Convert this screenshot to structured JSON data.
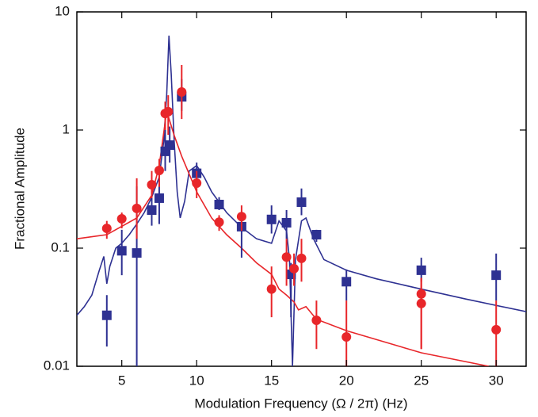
{
  "chart_data": {
    "type": "scatter",
    "xlabel": "Modulation Frequency (Ω / 2π) (Hz)",
    "ylabel": "Fractional Amplitude",
    "xlim": [
      2,
      32
    ],
    "xticks": [
      5,
      10,
      15,
      20,
      25,
      30
    ],
    "ylim": [
      0.01,
      10
    ],
    "yticks": [
      0.01,
      0.1,
      1,
      10
    ],
    "log_y": true,
    "grid": false,
    "series": [
      {
        "color": "#2e3192",
        "marker": "square",
        "x": [
          4,
          5,
          6,
          7,
          7.5,
          7.9,
          8.2,
          9,
          10,
          11.5,
          13,
          15,
          16,
          16.3,
          17,
          18,
          20,
          25,
          30
        ],
        "values": [
          0.027,
          0.095,
          0.091,
          0.21,
          0.265,
          0.66,
          0.745,
          1.91,
          0.43,
          0.234,
          0.152,
          0.175,
          0.164,
          0.06,
          0.245,
          0.13,
          0.052,
          0.065,
          0.059
        ],
        "lower": [
          0.0147,
          0.059,
          0.01,
          0.155,
          0.16,
          0.45,
          0.53,
          1.45,
          0.33,
          0.21,
          0.083,
          0.133,
          0.12,
          0.026,
          0.19,
          0.113,
          0.036,
          0.052,
          0.036
        ],
        "upper": [
          0.04,
          0.143,
          0.333,
          0.27,
          0.45,
          1.1,
          1.07,
          2.7,
          0.53,
          0.27,
          0.2,
          0.23,
          0.21,
          0.075,
          0.32,
          0.143,
          0.066,
          0.083,
          0.09
        ]
      },
      {
        "color": "#e8262a",
        "marker": "circle",
        "x": [
          4,
          5,
          6,
          7,
          7.5,
          7.9,
          8.1,
          9,
          10,
          11.5,
          13,
          15,
          16,
          16.5,
          17,
          18,
          20,
          25,
          25,
          30
        ],
        "values": [
          0.147,
          0.177,
          0.217,
          0.344,
          0.455,
          1.38,
          1.43,
          2.1,
          0.355,
          0.166,
          0.185,
          0.045,
          0.084,
          0.067,
          0.082,
          0.0245,
          0.0177,
          0.041,
          0.034,
          0.0204
        ],
        "lower": [
          0.12,
          0.147,
          0.12,
          0.265,
          0.33,
          1.0,
          0.91,
          1.24,
          0.265,
          0.14,
          0.14,
          0.026,
          0.048,
          0.048,
          0.052,
          0.014,
          0.01,
          0.014,
          0.014,
          0.01
        ],
        "upper": [
          0.17,
          0.2,
          0.39,
          0.45,
          0.57,
          1.74,
          1.97,
          3.55,
          0.45,
          0.19,
          0.23,
          0.07,
          0.12,
          0.09,
          0.12,
          0.036,
          0.036,
          0.056,
          0.056,
          0.036
        ]
      }
    ],
    "curves": [
      {
        "color": "#2e3192",
        "x": [
          2,
          2.5,
          3,
          3.5,
          3.8,
          4,
          4.2,
          4.6,
          5,
          5.5,
          6,
          6.5,
          7,
          7.5,
          7.8,
          8,
          8.15,
          8.3,
          8.5,
          8.7,
          8.9,
          9.2,
          9.5,
          10,
          10.5,
          11,
          12,
          13,
          14,
          15,
          15.5,
          16,
          16.2,
          16.4,
          16.6,
          17,
          17.3,
          17.8,
          18.5,
          20,
          22,
          25,
          28,
          32
        ],
        "values": [
          0.027,
          0.032,
          0.04,
          0.065,
          0.085,
          0.05,
          0.07,
          0.1,
          0.11,
          0.13,
          0.16,
          0.2,
          0.27,
          0.4,
          0.8,
          2.0,
          6.3,
          3.0,
          0.8,
          0.3,
          0.18,
          0.25,
          0.45,
          0.5,
          0.4,
          0.3,
          0.2,
          0.15,
          0.12,
          0.11,
          0.17,
          0.14,
          0.08,
          0.01,
          0.08,
          0.17,
          0.18,
          0.12,
          0.08,
          0.065,
          0.055,
          0.045,
          0.037,
          0.029
        ]
      },
      {
        "color": "#e8262a",
        "x": [
          2,
          4,
          6,
          7,
          7.5,
          8,
          8.5,
          9,
          10,
          11,
          12,
          13,
          14,
          15,
          15.5,
          16,
          16.5,
          16.8,
          17.3,
          18,
          20,
          25,
          29.5
        ],
        "values": [
          0.12,
          0.13,
          0.18,
          0.28,
          0.5,
          1.45,
          0.9,
          0.6,
          0.3,
          0.18,
          0.13,
          0.1,
          0.075,
          0.06,
          0.045,
          0.04,
          0.035,
          0.03,
          0.032,
          0.025,
          0.02,
          0.013,
          0.01
        ]
      }
    ]
  }
}
